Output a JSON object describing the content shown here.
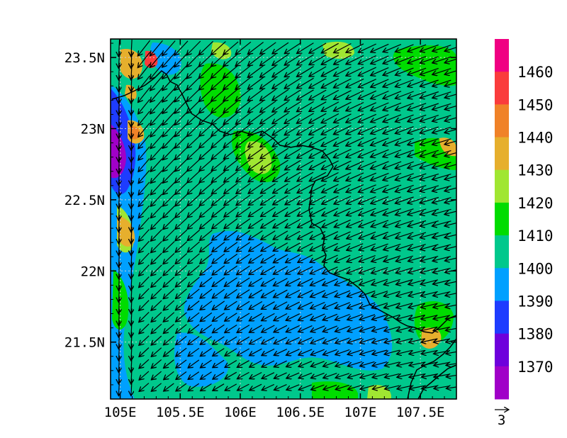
{
  "chart_data": {
    "type": "heatmap",
    "variable_overlay": "wind vectors",
    "x_axis": {
      "ticks": [
        {
          "value": 105.0,
          "label": "105E"
        },
        {
          "value": 105.5,
          "label": "105.5E"
        },
        {
          "value": 106.0,
          "label": "106E"
        },
        {
          "value": 106.5,
          "label": "106.5E"
        },
        {
          "value": 107.0,
          "label": "107E"
        },
        {
          "value": 107.5,
          "label": "107.5E"
        }
      ],
      "range": [
        104.92,
        107.8
      ]
    },
    "y_axis": {
      "ticks": [
        {
          "value": 21.5,
          "label": "21.5N"
        },
        {
          "value": 22.0,
          "label": "22N"
        },
        {
          "value": 22.5,
          "label": "22.5N"
        },
        {
          "value": 23.0,
          "label": "23N"
        },
        {
          "value": 23.5,
          "label": "23.5N"
        }
      ],
      "range": [
        21.1,
        23.63
      ]
    },
    "colorbar": {
      "labels": [
        "1370",
        "1380",
        "1390",
        "1400",
        "1410",
        "1420",
        "1430",
        "1440",
        "1450",
        "1460"
      ],
      "colors": [
        "#a000c8",
        "#6e00dc",
        "#1e3cff",
        "#00a0ff",
        "#00c88c",
        "#00dc00",
        "#a0e632",
        "#e6af2d",
        "#f08228",
        "#fa3c3c",
        "#f00082"
      ]
    },
    "reference_vector": {
      "label": "3"
    },
    "grid": true,
    "regions": [
      {
        "level": 1405,
        "shape": "background"
      },
      {
        "level": 1395,
        "shape": "lowland-south-center"
      },
      {
        "level": 1395,
        "shape": "west-strip"
      },
      {
        "level": 1385,
        "shape": "west-strip-inner"
      },
      {
        "level": 1375,
        "shape": "west-core"
      },
      {
        "level": 1415,
        "shape": "north-green-patches"
      },
      {
        "level": 1425,
        "shape": "yellowgreen-patches"
      },
      {
        "level": 1435,
        "shape": "orange-spots"
      },
      {
        "level": 1445,
        "shape": "red-spot"
      }
    ]
  }
}
